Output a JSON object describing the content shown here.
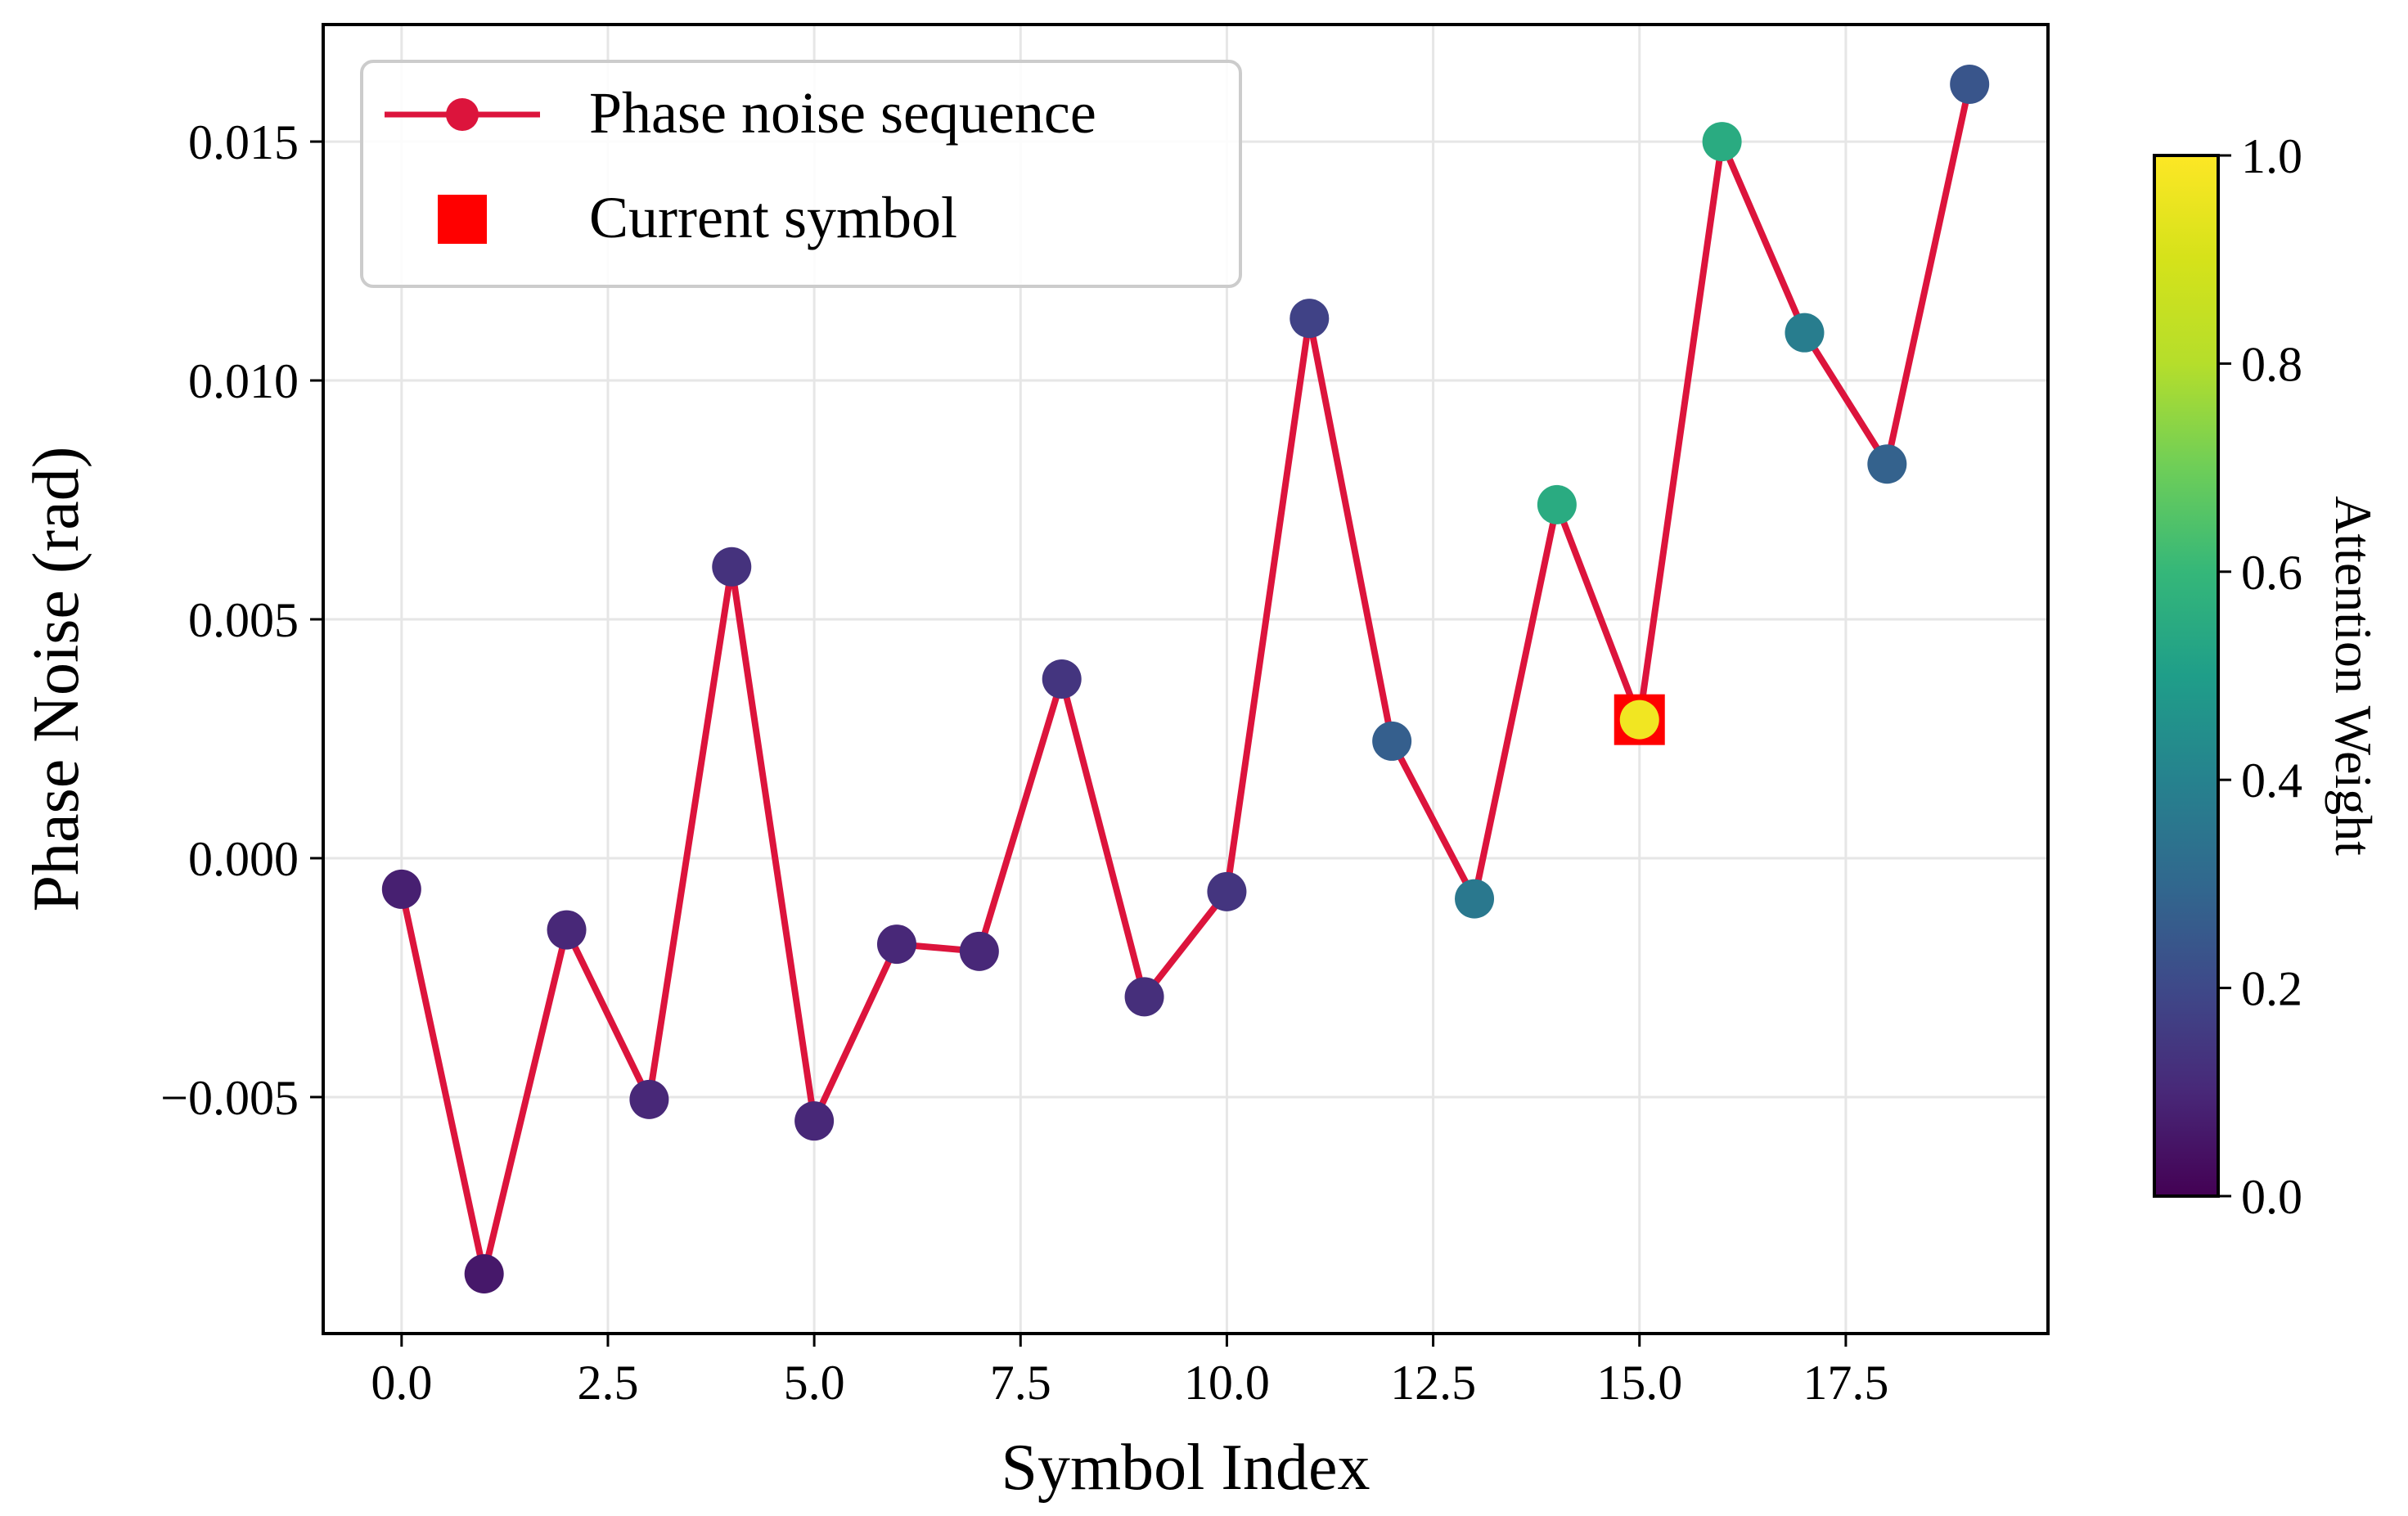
{
  "chart_data": {
    "type": "line",
    "xlabel": "Symbol Index",
    "ylabel": "Phase Noise (rad)",
    "xlim": [
      -0.95,
      19.95
    ],
    "ylim": [
      -0.00995,
      0.01745
    ],
    "xticks": [
      0.0,
      2.5,
      5.0,
      7.5,
      10.0,
      12.5,
      15.0,
      17.5
    ],
    "xtick_labels": [
      "0.0",
      "2.5",
      "5.0",
      "7.5",
      "10.0",
      "12.5",
      "15.0",
      "17.5"
    ],
    "yticks": [
      -0.005,
      0.0,
      0.005,
      0.01,
      0.015
    ],
    "ytick_labels": [
      "−0.005",
      "0.000",
      "0.005",
      "0.010",
      "0.015"
    ],
    "grid": true,
    "legend_position": "top-left",
    "series": [
      {
        "name": "Phase noise sequence",
        "color": "#dc143c",
        "x": [
          0,
          1,
          2,
          3,
          4,
          5,
          6,
          7,
          8,
          9,
          10,
          11,
          12,
          13,
          14,
          15,
          16,
          17,
          18,
          19
        ],
        "y": [
          -0.00065,
          -0.0087,
          -0.0015,
          -0.00505,
          0.0061,
          -0.0055,
          -0.0018,
          -0.00195,
          0.00375,
          -0.0029,
          -0.0007,
          0.0113,
          0.00245,
          -0.00085,
          0.0074,
          0.0029,
          0.015,
          0.011,
          0.00825,
          0.0162
        ],
        "attention": [
          0.08,
          0.06,
          0.1,
          0.1,
          0.13,
          0.1,
          0.1,
          0.1,
          0.14,
          0.12,
          0.14,
          0.18,
          0.27,
          0.36,
          0.55,
          0.97,
          0.55,
          0.38,
          0.28,
          0.24
        ]
      },
      {
        "name": "Current symbol",
        "color": "#ff0000",
        "x": [
          15
        ],
        "y": [
          0.0029
        ]
      }
    ],
    "colorbar": {
      "label": "Attention Weight",
      "colormap": "viridis",
      "range": [
        0.0,
        1.0
      ],
      "ticks": [
        0.0,
        0.2,
        0.4,
        0.6,
        0.8,
        1.0
      ],
      "tick_labels": [
        "0.0",
        "0.2",
        "0.4",
        "0.6",
        "0.8",
        "1.0"
      ]
    },
    "legend": {
      "entries": [
        "Phase noise sequence",
        "Current symbol"
      ]
    }
  }
}
